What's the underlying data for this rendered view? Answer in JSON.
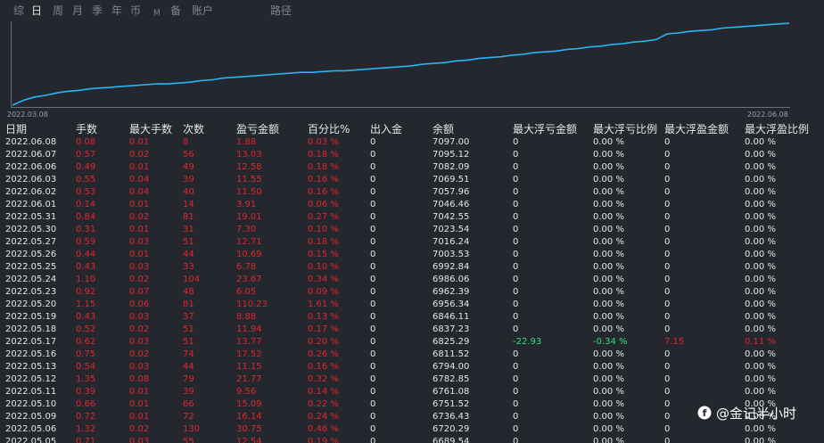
{
  "tabs": [
    {
      "label": "综",
      "active": false
    },
    {
      "label": "日",
      "active": true
    },
    {
      "label": "周",
      "active": false
    },
    {
      "label": "月",
      "active": false
    },
    {
      "label": "季",
      "active": false
    },
    {
      "label": "年",
      "active": false
    },
    {
      "label": "币",
      "active": false
    },
    {
      "label": "M",
      "active": false
    },
    {
      "label": "备",
      "active": false
    },
    {
      "label": "账户",
      "active": false
    },
    {
      "label": "路径",
      "active": false
    }
  ],
  "chart_data": {
    "type": "line",
    "x_start_label": "2022.03.08",
    "x_end_label": "2022.06.08",
    "line_color": "#29b6f6",
    "y_profile": [
      0,
      0.06,
      0.1,
      0.12,
      0.15,
      0.17,
      0.18,
      0.2,
      0.21,
      0.22,
      0.23,
      0.24,
      0.25,
      0.26,
      0.26,
      0.27,
      0.28,
      0.3,
      0.31,
      0.33,
      0.34,
      0.35,
      0.36,
      0.37,
      0.38,
      0.39,
      0.4,
      0.4,
      0.41,
      0.42,
      0.42,
      0.43,
      0.44,
      0.45,
      0.46,
      0.47,
      0.48,
      0.5,
      0.51,
      0.52,
      0.54,
      0.55,
      0.57,
      0.58,
      0.59,
      0.61,
      0.62,
      0.64,
      0.65,
      0.66,
      0.68,
      0.69,
      0.71,
      0.72,
      0.74,
      0.75,
      0.77,
      0.78,
      0.8,
      0.87,
      0.88,
      0.9,
      0.91,
      0.92,
      0.94,
      0.95,
      0.96,
      0.97,
      0.98,
      0.99,
      1.0
    ]
  },
  "table": {
    "headers": [
      "日期",
      "手数",
      "最大手数",
      "次数",
      "盈亏金额",
      "百分比%",
      "出入金",
      "余额",
      "最大浮亏金额",
      "最大浮亏比例",
      "最大浮盈金额",
      "最大浮盈比例"
    ],
    "rows": [
      [
        "2022.06.08",
        "0.08",
        "0.01",
        "8",
        "1.88",
        "0.03 %",
        "0",
        "7097.00",
        "0",
        "0.00 %",
        "0",
        "0.00 %"
      ],
      [
        "2022.06.07",
        "0.57",
        "0.02",
        "56",
        "13.03",
        "0.18 %",
        "0",
        "7095.12",
        "0",
        "0.00 %",
        "0",
        "0.00 %"
      ],
      [
        "2022.06.06",
        "0.49",
        "0.01",
        "49",
        "12.58",
        "0.18 %",
        "0",
        "7082.09",
        "0",
        "0.00 %",
        "0",
        "0.00 %"
      ],
      [
        "2022.06.03",
        "0.55",
        "0.04",
        "39",
        "11.55",
        "0.16 %",
        "0",
        "7069.51",
        "0",
        "0.00 %",
        "0",
        "0.00 %"
      ],
      [
        "2022.06.02",
        "0.53",
        "0.04",
        "40",
        "11.50",
        "0.16 %",
        "0",
        "7057.96",
        "0",
        "0.00 %",
        "0",
        "0.00 %"
      ],
      [
        "2022.06.01",
        "0.14",
        "0.01",
        "14",
        "3.91",
        "0.06 %",
        "0",
        "7046.46",
        "0",
        "0.00 %",
        "0",
        "0.00 %"
      ],
      [
        "2022.05.31",
        "0.84",
        "0.02",
        "81",
        "19.01",
        "0.27 %",
        "0",
        "7042.55",
        "0",
        "0.00 %",
        "0",
        "0.00 %"
      ],
      [
        "2022.05.30",
        "0.31",
        "0.01",
        "31",
        "7.30",
        "0.10 %",
        "0",
        "7023.54",
        "0",
        "0.00 %",
        "0",
        "0.00 %"
      ],
      [
        "2022.05.27",
        "0.59",
        "0.03",
        "51",
        "12.71",
        "0.18 %",
        "0",
        "7016.24",
        "0",
        "0.00 %",
        "0",
        "0.00 %"
      ],
      [
        "2022.05.26",
        "0.44",
        "0.01",
        "44",
        "10.69",
        "0.15 %",
        "0",
        "7003.53",
        "0",
        "0.00 %",
        "0",
        "0.00 %"
      ],
      [
        "2022.05.25",
        "0.43",
        "0.03",
        "33",
        "6.78",
        "0.10 %",
        "0",
        "6992.84",
        "0",
        "0.00 %",
        "0",
        "0.00 %"
      ],
      [
        "2022.05.24",
        "1.10",
        "0.02",
        "104",
        "23.67",
        "0.34 %",
        "0",
        "6986.06",
        "0",
        "0.00 %",
        "0",
        "0.00 %"
      ],
      [
        "2022.05.23",
        "0.92",
        "0.07",
        "48",
        "6.05",
        "0.09 %",
        "0",
        "6962.39",
        "0",
        "0.00 %",
        "0",
        "0.00 %"
      ],
      [
        "2022.05.20",
        "1.15",
        "0.06",
        "81",
        "110.23",
        "1.61 %",
        "0",
        "6956.34",
        "0",
        "0.00 %",
        "0",
        "0.00 %"
      ],
      [
        "2022.05.19",
        "0.43",
        "0.03",
        "37",
        "8.88",
        "0.13 %",
        "0",
        "6846.11",
        "0",
        "0.00 %",
        "0",
        "0.00 %"
      ],
      [
        "2022.05.18",
        "0.52",
        "0.02",
        "51",
        "11.94",
        "0.17 %",
        "0",
        "6837.23",
        "0",
        "0.00 %",
        "0",
        "0.00 %"
      ],
      [
        "2022.05.17",
        "0.62",
        "0.03",
        "51",
        "13.77",
        "0.20 %",
        "0",
        "6825.29",
        "-22.93",
        "-0.34 %",
        "7.15",
        "0.11 %"
      ],
      [
        "2022.05.16",
        "0.75",
        "0.02",
        "74",
        "17.52",
        "0.26 %",
        "0",
        "6811.52",
        "0",
        "0.00 %",
        "0",
        "0.00 %"
      ],
      [
        "2022.05.13",
        "0.54",
        "0.03",
        "44",
        "11.15",
        "0.16 %",
        "0",
        "6794.00",
        "0",
        "0.00 %",
        "0",
        "0.00 %"
      ],
      [
        "2022.05.12",
        "1.35",
        "0.08",
        "79",
        "21.77",
        "0.32 %",
        "0",
        "6782.85",
        "0",
        "0.00 %",
        "0",
        "0.00 %"
      ],
      [
        "2022.05.11",
        "0.39",
        "0.01",
        "39",
        "9.56",
        "0.14 %",
        "0",
        "6761.08",
        "0",
        "0.00 %",
        "0",
        "0.00 %"
      ],
      [
        "2022.05.10",
        "0.66",
        "0.01",
        "66",
        "15.09",
        "0.22 %",
        "0",
        "6751.52",
        "0",
        "0.00 %",
        "0",
        "0.00 %"
      ],
      [
        "2022.05.09",
        "0.72",
        "0.01",
        "72",
        "16.14",
        "0.24 %",
        "0",
        "6736.43",
        "0",
        "0.00 %",
        "0",
        "0.00 %"
      ],
      [
        "2022.05.06",
        "1.32",
        "0.02",
        "130",
        "30.75",
        "0.46 %",
        "0",
        "6720.29",
        "0",
        "0.00 %",
        "0",
        "0.00 %"
      ],
      [
        "2022.05.05",
        "0.71",
        "0.03",
        "55",
        "12.54",
        "0.19 %",
        "0",
        "6689.54",
        "0",
        "0.00 %",
        "0",
        "0.00 %"
      ]
    ]
  },
  "colors": {
    "profit": "#e0262c",
    "loss": "#2ee36f",
    "text": "#e6e6e6"
  },
  "watermark": {
    "icon": "weibo-logo-icon",
    "text": "@金记半小时"
  }
}
